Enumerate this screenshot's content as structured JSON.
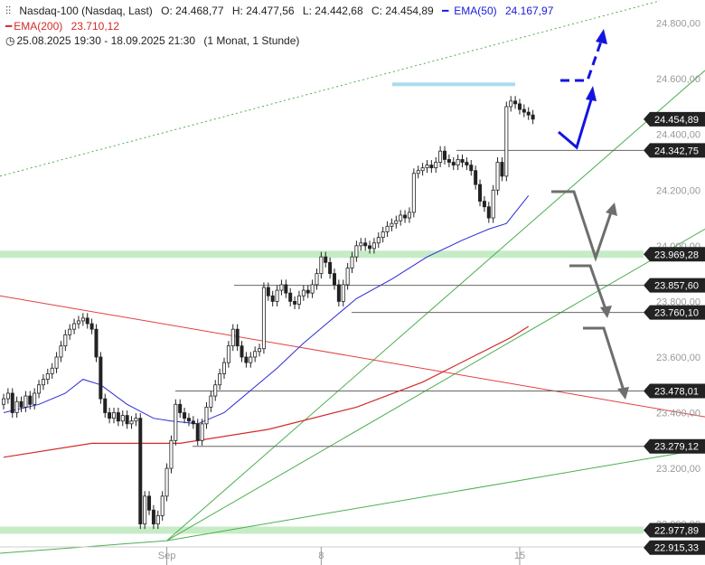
{
  "header": {
    "instrument": "Nasdaq-100 (Nasdaq, Last)",
    "open": "O: 24.468,77",
    "high": "H: 24.477,56",
    "low": "L: 24.442,68",
    "close": "C: 24.454,89",
    "ema50_label": "EMA(50)",
    "ema50_value": "24.167,97",
    "ema200_label": "EMA(200)",
    "ema200_value": "23.710,12",
    "range": "25.08.2025 19:30 - 18.09.2025 21:30",
    "period": "(1 Monat, 1 Stunde)"
  },
  "colors": {
    "ema50": "#2a2ad8",
    "ema200": "#d42a2a",
    "trend": "#4caf50",
    "arrow_blue": "#1414e0",
    "arrow_gray": "#6e6e6e",
    "tag": "#222222",
    "zone": "#c6ecc6",
    "resistance": "#a8dcf0"
  },
  "chart_data": {
    "type": "candlestick",
    "ylim": [
      22890,
      24900
    ],
    "yticks": [
      "23.000,00",
      "23.200,00",
      "23.400,00",
      "23.600,00",
      "23.800,00",
      "24.000,00",
      "24.200,00",
      "24.400,00",
      "24.600,00",
      "24.800,00"
    ],
    "xticks": [
      {
        "label": "Sep",
        "bar": 37
      },
      {
        "label": "8",
        "bar": 72
      },
      {
        "label": "15",
        "bar": 117
      }
    ],
    "levels": [
      "24.342,75",
      "23.969,28",
      "23.857,60",
      "23.760,10",
      "23.478,01",
      "23.279,12",
      "22.977,89",
      "22.915,33"
    ],
    "last_price": "24.454,89",
    "closes": [
      23450,
      23470,
      23400,
      23440,
      23420,
      23460,
      23430,
      23470,
      23500,
      23520,
      23540,
      23560,
      23600,
      23640,
      23680,
      23700,
      23720,
      23730,
      23740,
      23720,
      23700,
      23600,
      23450,
      23400,
      23380,
      23400,
      23370,
      23390,
      23360,
      23370,
      23380,
      23000,
      23100,
      23050,
      23000,
      23030,
      23100,
      23200,
      23300,
      23430,
      23400,
      23380,
      23370,
      23360,
      23300,
      23360,
      23420,
      23460,
      23500,
      23540,
      23580,
      23640,
      23700,
      23640,
      23600,
      23580,
      23600,
      23620,
      23630,
      23850,
      23820,
      23800,
      23840,
      23860,
      23830,
      23800,
      23790,
      23820,
      23840,
      23830,
      23860,
      23900,
      23960,
      23940,
      23900,
      23860,
      23800,
      23860,
      23920,
      23960,
      24000,
      24010,
      24000,
      23990,
      24010,
      24030,
      24050,
      24070,
      24080,
      24090,
      24110,
      24100,
      24120,
      24260,
      24270,
      24280,
      24290,
      24280,
      24300,
      24340,
      24310,
      24300,
      24290,
      24310,
      24300,
      24290,
      24270,
      24220,
      24160,
      24140,
      24100,
      24200,
      24300,
      24250,
      24500,
      24520,
      24510,
      24490,
      24480,
      24470,
      24455
    ],
    "ema50": [
      [
        0,
        23400
      ],
      [
        8,
        23430
      ],
      [
        14,
        23470
      ],
      [
        18,
        23520
      ],
      [
        22,
        23500
      ],
      [
        28,
        23430
      ],
      [
        34,
        23380
      ],
      [
        38,
        23370
      ],
      [
        44,
        23360
      ],
      [
        50,
        23400
      ],
      [
        56,
        23480
      ],
      [
        62,
        23560
      ],
      [
        68,
        23650
      ],
      [
        74,
        23730
      ],
      [
        80,
        23810
      ],
      [
        88,
        23880
      ],
      [
        96,
        23960
      ],
      [
        104,
        24020
      ],
      [
        110,
        24060
      ],
      [
        114,
        24080
      ],
      [
        119,
        24180
      ]
    ],
    "ema200": [
      [
        0,
        23240
      ],
      [
        20,
        23290
      ],
      [
        40,
        23290
      ],
      [
        60,
        23340
      ],
      [
        80,
        23420
      ],
      [
        95,
        23510
      ],
      [
        105,
        23590
      ],
      [
        115,
        23670
      ],
      [
        119,
        23710
      ]
    ],
    "annotations": {
      "blue_arrows": [
        "down-up",
        "dashed-up"
      ],
      "gray_arrows": [
        "down-up",
        "down",
        "down"
      ]
    }
  }
}
